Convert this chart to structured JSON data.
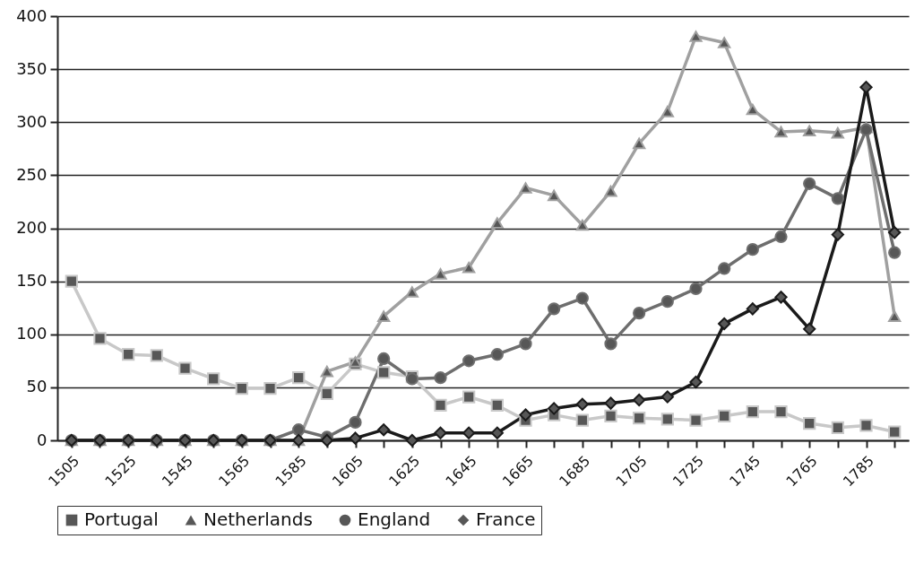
{
  "chart_data": {
    "type": "line",
    "categories": [
      "1505",
      null,
      "1525",
      null,
      "1545",
      null,
      "1565",
      null,
      "1585",
      null,
      "1605",
      null,
      "1625",
      null,
      "1645",
      null,
      "1665",
      null,
      "1685",
      null,
      "1705",
      null,
      "1725",
      null,
      "1745",
      null,
      "1765",
      null,
      "1785",
      null
    ],
    "series": [
      {
        "name": "Portugal",
        "color": "#c8c8c8",
        "marker": "square",
        "values": [
          150,
          96,
          81,
          80,
          68,
          58,
          49,
          49,
          59,
          44,
          72,
          64,
          60,
          33,
          41,
          33,
          19,
          24,
          19,
          23,
          21,
          20,
          19,
          23,
          27,
          27,
          16,
          12,
          14,
          8
        ]
      },
      {
        "name": "Netherlands",
        "color": "#a0a0a0",
        "marker": "triangle",
        "values": [
          0,
          0,
          0,
          0,
          0,
          0,
          0,
          0,
          0,
          65,
          74,
          117,
          140,
          157,
          163,
          205,
          238,
          231,
          203,
          235,
          280,
          310,
          381,
          375,
          312,
          291,
          292,
          290,
          295,
          117
        ]
      },
      {
        "name": "England",
        "color": "#6e6e6e",
        "marker": "circle",
        "values": [
          0,
          0,
          0,
          0,
          0,
          0,
          0,
          0,
          10,
          3,
          17,
          77,
          58,
          59,
          75,
          81,
          91,
          124,
          134,
          91,
          120,
          131,
          143,
          162,
          180,
          192,
          242,
          228,
          293,
          177
        ]
      },
      {
        "name": "France",
        "color": "#1a1a1a",
        "marker": "diamond",
        "values": [
          0,
          0,
          0,
          0,
          0,
          0,
          0,
          0,
          0,
          0,
          2,
          10,
          0,
          7,
          7,
          7,
          24,
          30,
          34,
          35,
          38,
          41,
          55,
          110,
          124,
          135,
          105,
          194,
          333,
          196
        ]
      }
    ],
    "ylim": [
      0,
      400
    ],
    "yticks": [
      0,
      50,
      100,
      150,
      200,
      250,
      300,
      350,
      400
    ],
    "grid": "y",
    "legend": "bottom",
    "line_style": "solid"
  }
}
